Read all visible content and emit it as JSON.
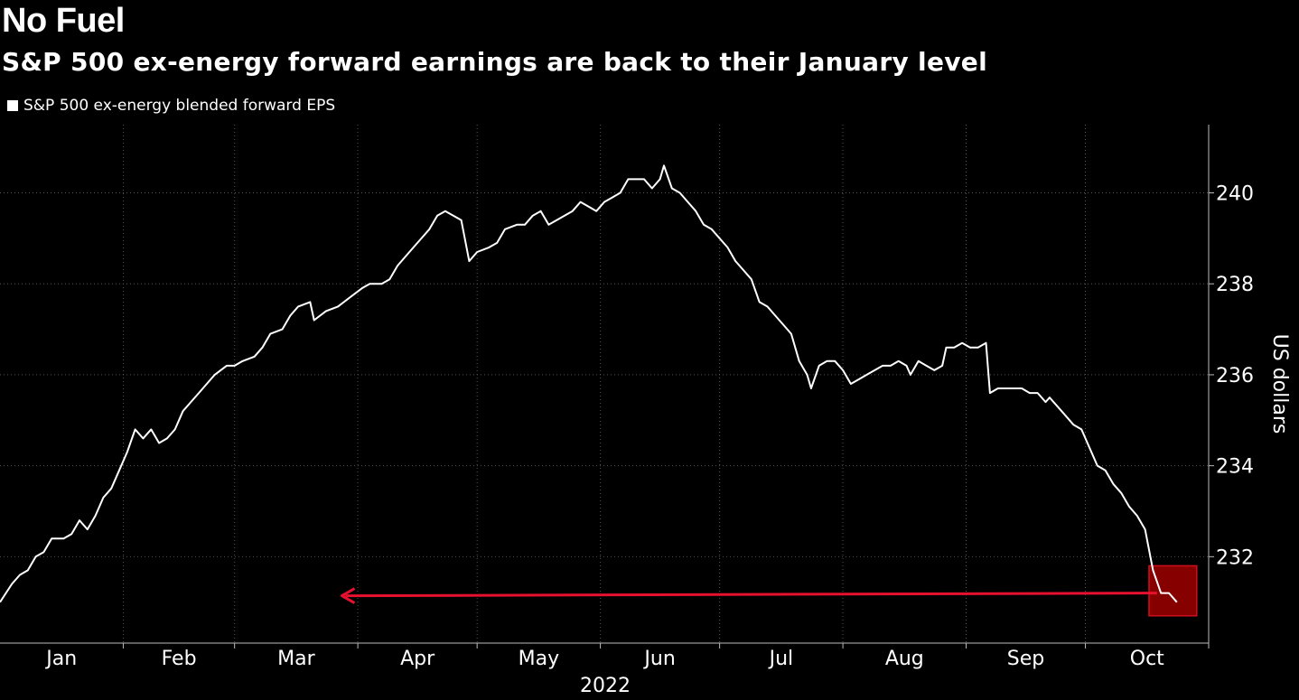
{
  "chart_data": {
    "type": "line",
    "title": "No Fuel",
    "subtitle": "S&P 500 ex-energy forward earnings are back to their January level",
    "xlabel": "2022",
    "ylabel": "US dollars",
    "x_tick_labels": [
      "Jan",
      "Feb",
      "Mar",
      "Apr",
      "May",
      "Jun",
      "Jul",
      "Aug",
      "Sep",
      "Oct"
    ],
    "y_ticks": [
      232,
      234,
      236,
      238,
      240
    ],
    "ylim": [
      230.1,
      241.5
    ],
    "grid": true,
    "legend_position": "top-left",
    "series": [
      {
        "name": "S&P 500 ex-energy blended forward EPS",
        "color": "#ffffff",
        "points": [
          [
            "2022-01-01",
            231.0
          ],
          [
            "2022-01-04",
            231.4
          ],
          [
            "2022-01-06",
            231.6
          ],
          [
            "2022-01-08",
            231.7
          ],
          [
            "2022-01-10",
            232.0
          ],
          [
            "2022-01-12",
            232.1
          ],
          [
            "2022-01-14",
            232.4
          ],
          [
            "2022-01-17",
            232.4
          ],
          [
            "2022-01-19",
            232.5
          ],
          [
            "2022-01-21",
            232.8
          ],
          [
            "2022-01-23",
            232.6
          ],
          [
            "2022-01-25",
            232.9
          ],
          [
            "2022-01-27",
            233.3
          ],
          [
            "2022-01-29",
            233.5
          ],
          [
            "2022-01-31",
            233.9
          ],
          [
            "2022-02-02",
            234.3
          ],
          [
            "2022-02-04",
            234.8
          ],
          [
            "2022-02-06",
            234.6
          ],
          [
            "2022-02-08",
            234.8
          ],
          [
            "2022-02-10",
            234.5
          ],
          [
            "2022-02-12",
            234.6
          ],
          [
            "2022-02-14",
            234.8
          ],
          [
            "2022-02-16",
            235.2
          ],
          [
            "2022-02-18",
            235.4
          ],
          [
            "2022-02-20",
            235.6
          ],
          [
            "2022-02-22",
            235.8
          ],
          [
            "2022-02-24",
            236.0
          ],
          [
            "2022-02-27",
            236.2
          ],
          [
            "2022-03-01",
            236.2
          ],
          [
            "2022-03-03",
            236.3
          ],
          [
            "2022-03-06",
            236.4
          ],
          [
            "2022-03-08",
            236.6
          ],
          [
            "2022-03-10",
            236.9
          ],
          [
            "2022-03-13",
            237.0
          ],
          [
            "2022-03-15",
            237.3
          ],
          [
            "2022-03-17",
            237.5
          ],
          [
            "2022-03-20",
            237.6
          ],
          [
            "2022-03-21",
            237.2
          ],
          [
            "2022-03-24",
            237.4
          ],
          [
            "2022-03-27",
            237.5
          ],
          [
            "2022-03-30",
            237.7
          ],
          [
            "2022-04-02",
            237.9
          ],
          [
            "2022-04-04",
            238.0
          ],
          [
            "2022-04-07",
            238.0
          ],
          [
            "2022-04-09",
            238.1
          ],
          [
            "2022-04-11",
            238.4
          ],
          [
            "2022-04-13",
            238.6
          ],
          [
            "2022-04-15",
            238.8
          ],
          [
            "2022-04-17",
            239.0
          ],
          [
            "2022-04-19",
            239.2
          ],
          [
            "2022-04-21",
            239.5
          ],
          [
            "2022-04-23",
            239.6
          ],
          [
            "2022-04-25",
            239.5
          ],
          [
            "2022-04-27",
            239.4
          ],
          [
            "2022-04-29",
            238.5
          ],
          [
            "2022-05-01",
            238.7
          ],
          [
            "2022-05-04",
            238.8
          ],
          [
            "2022-05-06",
            238.9
          ],
          [
            "2022-05-08",
            239.2
          ],
          [
            "2022-05-11",
            239.3
          ],
          [
            "2022-05-13",
            239.3
          ],
          [
            "2022-05-15",
            239.5
          ],
          [
            "2022-05-17",
            239.6
          ],
          [
            "2022-05-19",
            239.3
          ],
          [
            "2022-05-21",
            239.4
          ],
          [
            "2022-05-23",
            239.5
          ],
          [
            "2022-05-25",
            239.6
          ],
          [
            "2022-05-27",
            239.8
          ],
          [
            "2022-05-29",
            239.7
          ],
          [
            "2022-05-31",
            239.6
          ],
          [
            "2022-06-02",
            239.8
          ],
          [
            "2022-06-04",
            239.9
          ],
          [
            "2022-06-06",
            240.0
          ],
          [
            "2022-06-08",
            240.3
          ],
          [
            "2022-06-10",
            240.3
          ],
          [
            "2022-06-12",
            240.3
          ],
          [
            "2022-06-14",
            240.1
          ],
          [
            "2022-06-16",
            240.3
          ],
          [
            "2022-06-17",
            240.6
          ],
          [
            "2022-06-19",
            240.1
          ],
          [
            "2022-06-21",
            240.0
          ],
          [
            "2022-06-23",
            239.8
          ],
          [
            "2022-06-25",
            239.6
          ],
          [
            "2022-06-27",
            239.3
          ],
          [
            "2022-06-29",
            239.2
          ],
          [
            "2022-07-01",
            239.0
          ],
          [
            "2022-07-03",
            238.8
          ],
          [
            "2022-07-05",
            238.5
          ],
          [
            "2022-07-07",
            238.3
          ],
          [
            "2022-07-09",
            238.1
          ],
          [
            "2022-07-11",
            237.6
          ],
          [
            "2022-07-13",
            237.5
          ],
          [
            "2022-07-15",
            237.3
          ],
          [
            "2022-07-17",
            237.1
          ],
          [
            "2022-07-19",
            236.9
          ],
          [
            "2022-07-21",
            236.3
          ],
          [
            "2022-07-23",
            236.0
          ],
          [
            "2022-07-24",
            235.7
          ],
          [
            "2022-07-26",
            236.2
          ],
          [
            "2022-07-28",
            236.3
          ],
          [
            "2022-07-30",
            236.3
          ],
          [
            "2022-08-01",
            236.1
          ],
          [
            "2022-08-03",
            235.8
          ],
          [
            "2022-08-05",
            235.9
          ],
          [
            "2022-08-07",
            236.0
          ],
          [
            "2022-08-09",
            236.1
          ],
          [
            "2022-08-11",
            236.2
          ],
          [
            "2022-08-13",
            236.2
          ],
          [
            "2022-08-15",
            236.3
          ],
          [
            "2022-08-17",
            236.2
          ],
          [
            "2022-08-18",
            236.0
          ],
          [
            "2022-08-20",
            236.3
          ],
          [
            "2022-08-22",
            236.2
          ],
          [
            "2022-08-24",
            236.1
          ],
          [
            "2022-08-26",
            236.2
          ],
          [
            "2022-08-27",
            236.6
          ],
          [
            "2022-08-29",
            236.6
          ],
          [
            "2022-08-31",
            236.7
          ],
          [
            "2022-09-02",
            236.6
          ],
          [
            "2022-09-04",
            236.6
          ],
          [
            "2022-09-06",
            236.7
          ],
          [
            "2022-09-07",
            235.6
          ],
          [
            "2022-09-09",
            235.7
          ],
          [
            "2022-09-11",
            235.7
          ],
          [
            "2022-09-13",
            235.7
          ],
          [
            "2022-09-15",
            235.7
          ],
          [
            "2022-09-17",
            235.6
          ],
          [
            "2022-09-19",
            235.6
          ],
          [
            "2022-09-21",
            235.4
          ],
          [
            "2022-09-22",
            235.5
          ],
          [
            "2022-09-24",
            235.3
          ],
          [
            "2022-09-26",
            235.1
          ],
          [
            "2022-09-28",
            234.9
          ],
          [
            "2022-09-30",
            234.8
          ],
          [
            "2022-10-02",
            234.4
          ],
          [
            "2022-10-04",
            234.0
          ],
          [
            "2022-10-06",
            233.9
          ],
          [
            "2022-10-08",
            233.6
          ],
          [
            "2022-10-10",
            233.4
          ],
          [
            "2022-10-12",
            233.1
          ],
          [
            "2022-10-14",
            232.9
          ],
          [
            "2022-10-16",
            232.6
          ],
          [
            "2022-10-18",
            231.7
          ],
          [
            "2022-10-20",
            231.2
          ],
          [
            "2022-10-22",
            231.2
          ],
          [
            "2022-10-24",
            231.0
          ]
        ]
      }
    ],
    "annotation": {
      "arrow_color": "#e8102f",
      "arrow_value": 231.2,
      "arrow_from": "2022-10-19",
      "arrow_to": "2022-03-28",
      "highlight_color": "#b30000",
      "highlight_x": [
        "2022-10-17",
        "2022-10-29"
      ],
      "highlight_y": [
        230.7,
        231.8
      ]
    }
  }
}
